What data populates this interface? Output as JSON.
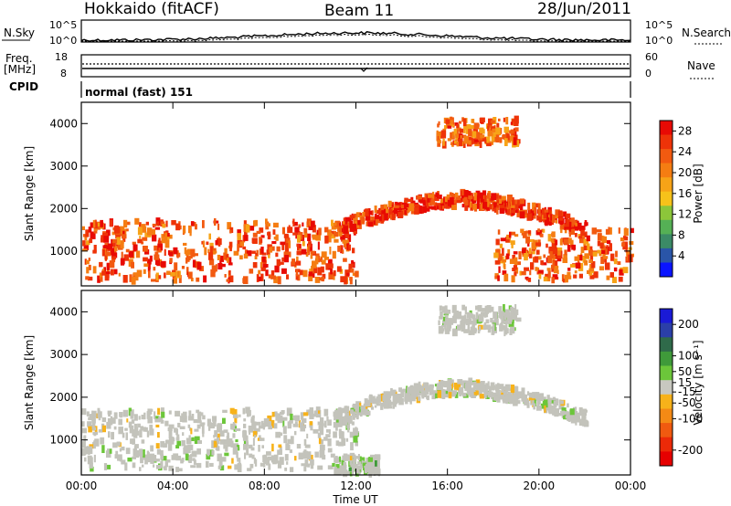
{
  "header": {
    "station": "Hokkaido (fitACF)",
    "beam": "Beam 11",
    "date": "28/Jun/2011"
  },
  "strips": {
    "nsky_label": "N.Sky",
    "nsearch_label": "N.Search",
    "count_ticks": [
      "10^5",
      "10^0"
    ],
    "freq_label": "Freq.",
    "freq_unit": "[MHz]",
    "freq_ticks": [
      "18",
      "8"
    ],
    "nave_label": "Nave",
    "nave_ticks": [
      "60",
      "0"
    ],
    "cpid_label": "CPID",
    "cpid_value": "normal (fast) 151"
  },
  "colors": {
    "power_scale": [
      "#0a14ff",
      "#2a55a8",
      "#3b8a66",
      "#55b055",
      "#8cc63a",
      "#f7c21a",
      "#f7a317",
      "#f57d12",
      "#f25a10",
      "#ee3308",
      "#e80a04"
    ],
    "velocity_scale": [
      "#1a1ad6",
      "#2b3fa8",
      "#2f6a4a",
      "#3f9a3a",
      "#6cc63a",
      "#c8c8c0",
      "#f7b21a",
      "#f48a15",
      "#f05a10",
      "#ec2a08",
      "#e60000"
    ],
    "ground_scatter": "#c3c3bb"
  },
  "chart_data": [
    {
      "type": "heatmap",
      "panel": "power",
      "ylabel": "Slant Range [km]",
      "x_range": [
        "00:00",
        "24:00"
      ],
      "ylim": [
        180,
        4500
      ],
      "y_ticks": [
        "1000",
        "2000",
        "3000",
        "4000"
      ],
      "colorbar_label": "Power [dB]",
      "colorbar_ticks": [
        "4",
        "8",
        "12",
        "16",
        "20",
        "24",
        "28"
      ],
      "colorbar_range": [
        0,
        30
      ],
      "features": [
        {
          "hours": [
            0,
            12
          ],
          "range_km": [
            300,
            1700
          ],
          "power_db": 25
        },
        {
          "hours": [
            11,
            22
          ],
          "range_km": [
            1500,
            2400
          ],
          "power_db": 27
        },
        {
          "hours": [
            15.5,
            19
          ],
          "range_km": [
            3500,
            4100
          ],
          "power_db": 23
        },
        {
          "hours": [
            18,
            24
          ],
          "range_km": [
            300,
            1500
          ],
          "power_db": 24
        }
      ]
    },
    {
      "type": "heatmap",
      "panel": "velocity",
      "ylabel": "Slant Range [km]",
      "xlabel": "Time UT",
      "x_range": [
        "00:00",
        "24:00"
      ],
      "x_ticks": [
        "00:00",
        "04:00",
        "08:00",
        "12:00",
        "16:00",
        "20:00",
        "00:00"
      ],
      "ylim": [
        180,
        4500
      ],
      "y_ticks": [
        "1000",
        "2000",
        "3000",
        "4000"
      ],
      "colorbar_label": "Velocity [m s⁻¹]",
      "colorbar_ticks": [
        "200",
        "100",
        "50",
        "15",
        "-15",
        "-50",
        "-100",
        "-200"
      ],
      "colorbar_range": [
        -250,
        250
      ],
      "features": [
        {
          "hours": [
            0,
            12
          ],
          "range_km": [
            300,
            1700
          ],
          "velocity_ms": 0
        },
        {
          "hours": [
            11,
            22
          ],
          "range_km": [
            1500,
            2400
          ],
          "velocity_ms": 0
        },
        {
          "hours": [
            15.5,
            19
          ],
          "range_km": [
            3500,
            4100
          ],
          "velocity_ms": 10
        },
        {
          "hours": [
            11,
            13
          ],
          "range_km": [
            200,
            600
          ],
          "velocity_ms": 40
        }
      ]
    }
  ]
}
